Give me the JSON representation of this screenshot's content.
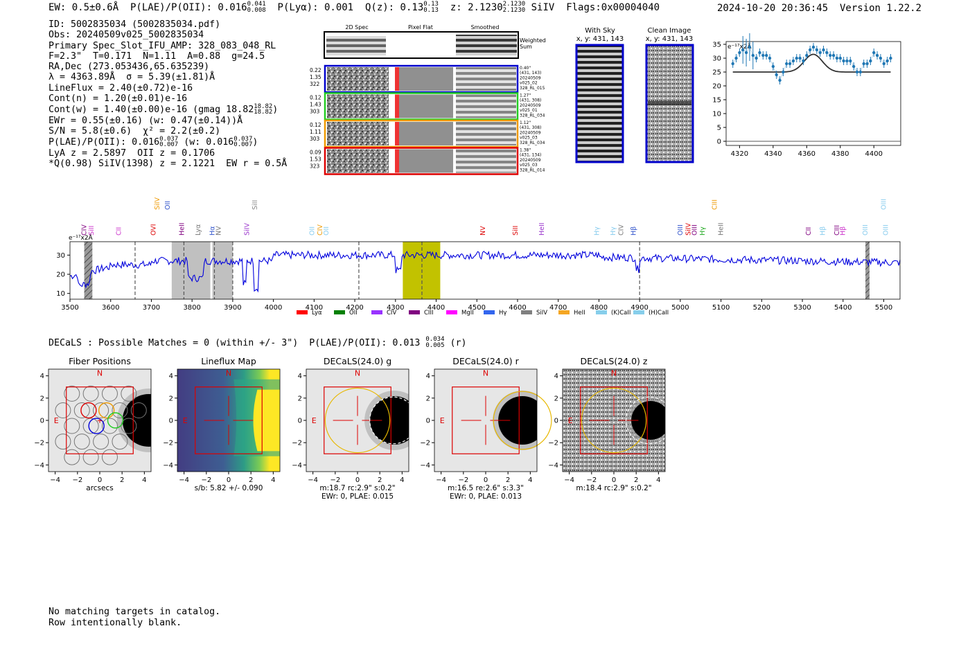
{
  "header": {
    "left": "EW: 0.5±0.6Å  P(LAE)/P(OII): 0.016",
    "plae_sup": "0.041",
    "plae_sub": "0.008",
    "plya": "P(Lyα): 0.001",
    "qz": "Q(z): 0.13",
    "qz_sup": "0.13",
    "qz_sub": "0.13",
    "z": "z: 2.1230",
    "z_sup": "2.1230",
    "z_sub": "2.1230",
    "z_tail": "SiIV  Flags:0x00004040",
    "datetime": "2024-10-20 20:36:45  Version 1.22.2"
  },
  "info_lines": [
    "ID: 5002835034 (5002835034.pdf)",
    "Obs: 20240509v025_5002835034",
    "Primary Spec_Slot_IFU_AMP: 328_083_048_RL",
    "F=2.3\"  T=0.171  N=1.11  A=0.88  g=24.5",
    "RA,Dec (273.053436,65.635239)",
    "λ = 4363.89Å  σ = 5.39(±1.81)Å",
    "LineFlux = 2.40(±0.72)e-16",
    "Cont(n) = 1.20(±0.01)e-16"
  ],
  "info_contw": "Cont(w) = 1.40(±0.00)e-16 (gmag 18.82",
  "info_contw_sup": "18.82",
  "info_contw_sub": "18.82",
  "info_ewr": "EWr = 0.55(±0.16) (w: 0.47(±0.14))Å",
  "info_sn": "S/N = 5.8(±0.6)  χ² = 2.2(±0.2)",
  "info_plae": "P(LAE)/P(OII): 0.016",
  "info_plae_sup": "0.037",
  "info_plae_sub": "0.007",
  "info_plae_w": "(w: 0.016",
  "info_plae_w_sup": "0.037",
  "info_plae_w_sub": "0.007",
  "info_lya": "LyA z = 2.5897  OII z = 0.1706",
  "info_q": "*Q(0.98) SiIV(1398) z = 2.1221  EW r = 0.5Å",
  "cutouts": {
    "col_headers": [
      "2D Spec",
      "Pixel Flat",
      "Smoothed"
    ],
    "weighted_sum": [
      "Weighted",
      "Sum"
    ],
    "rows": [
      {
        "left": [
          "0.22",
          "1.35",
          "322"
        ],
        "right": [
          "0.40\"",
          "(431, 143)",
          "20240509",
          "v025_02",
          "328_RL_015"
        ],
        "color": "#0000cc"
      },
      {
        "left": [
          "0.12",
          "1.43",
          "303"
        ],
        "right": [
          "1.27\"",
          "(431, 308)",
          "20240509",
          "v025_01",
          "328_RL_034"
        ],
        "color": "#22cc22"
      },
      {
        "left": [
          "0.12",
          "1.11",
          "303"
        ],
        "right": [
          "1.12\"",
          "(431, 308)",
          "20240509",
          "v025_03",
          "328_RL_034"
        ],
        "color": "#ee9900"
      },
      {
        "left": [
          "0.09",
          "1.53",
          "323"
        ],
        "right": [
          "1.38\"",
          "(431, 134)",
          "20240509",
          "v025_03",
          "328_RL_014"
        ],
        "color": "#dd0000"
      }
    ]
  },
  "withsky": {
    "title": "With Sky",
    "coords": "x, y: 431, 143"
  },
  "clean": {
    "title": "Clean Image",
    "coords": "x, y: 431, 143"
  },
  "zoom_chart": {
    "type": "line",
    "unit_label": "e⁻¹⁷x2Å",
    "xticks": [
      4320,
      4340,
      4360,
      4380,
      4400
    ],
    "yticks": [
      0,
      5,
      10,
      15,
      20,
      25,
      30,
      35
    ],
    "xlim": [
      4312,
      4416
    ],
    "ylim": [
      -1.5,
      36
    ],
    "data_x": [
      4316,
      4318,
      4320,
      4322,
      4324,
      4326,
      4328,
      4330,
      4332,
      4334,
      4336,
      4338,
      4340,
      4342,
      4344,
      4346,
      4348,
      4350,
      4352,
      4354,
      4356,
      4358,
      4360,
      4362,
      4364,
      4366,
      4368,
      4370,
      4372,
      4374,
      4376,
      4378,
      4380,
      4382,
      4384,
      4386,
      4388,
      4390,
      4392,
      4394,
      4396,
      4398,
      4400,
      4402,
      4404,
      4406,
      4408,
      4410
    ],
    "data_y": [
      28,
      30,
      32,
      33,
      32,
      34,
      31,
      30,
      32,
      31,
      31,
      30,
      27,
      24,
      22,
      25,
      28,
      28,
      29,
      30,
      30,
      29,
      31,
      33,
      34,
      33,
      32,
      33,
      32,
      31,
      31,
      30,
      30,
      29,
      29,
      29,
      27,
      25,
      25,
      28,
      28,
      29,
      32,
      31,
      30,
      28,
      29,
      30
    ],
    "model_center": 4363.9,
    "model_base": 25,
    "model_peak": 31.4,
    "model_sigma": 5.4
  },
  "spectrum": {
    "type": "line",
    "unit_label": "e⁻¹⁷x2Å",
    "xticks": [
      3500,
      3600,
      3700,
      3800,
      3900,
      4000,
      4100,
      4200,
      4300,
      4400,
      4500,
      4600,
      4700,
      4800,
      4900,
      5000,
      5100,
      5200,
      5300,
      5400,
      5500
    ],
    "yticks": [
      10,
      20,
      30
    ],
    "xlim": [
      3500,
      5540
    ],
    "ylim": [
      7,
      37
    ],
    "line_labels": [
      {
        "x": 3540,
        "text": "CIV",
        "color": "#800080"
      },
      {
        "x": 3558,
        "text": "SiII",
        "color": "#cc33cc"
      },
      {
        "x": 3625,
        "text": "CII",
        "color": "#cc33cc"
      },
      {
        "x": 3710,
        "text": "OVI",
        "color": "#dd0000"
      },
      {
        "x": 3720,
        "text": "SiIV",
        "color": "#ee9900"
      },
      {
        "x": 3745,
        "text": "OII",
        "color": "#3355cc"
      },
      {
        "x": 3780,
        "text": "HeII",
        "color": "#800080"
      },
      {
        "x": 3820,
        "text": "Lyα",
        "color": "#777777"
      },
      {
        "x": 3855,
        "text": "Hα",
        "color": "#3355cc"
      },
      {
        "x": 3870,
        "text": "NV",
        "color": "#777777"
      },
      {
        "x": 3940,
        "text": "SiIV",
        "color": "#9933cc"
      },
      {
        "x": 3960,
        "text": "SiII",
        "color": "#888888"
      },
      {
        "x": 4100,
        "text": "OII",
        "color": "#88ccee"
      },
      {
        "x": 4120,
        "text": "CIV",
        "color": "#ee9900"
      },
      {
        "x": 4135,
        "text": "OII",
        "color": "#88ccee"
      },
      {
        "x": 4520,
        "text": "NV",
        "color": "#dd0000"
      },
      {
        "x": 4600,
        "text": "SiII",
        "color": "#dd0000"
      },
      {
        "x": 4665,
        "text": "HeII",
        "color": "#9933cc"
      },
      {
        "x": 4800,
        "text": "Hγ",
        "color": "#88ccee"
      },
      {
        "x": 4840,
        "text": "Hγ",
        "color": "#88ccee"
      },
      {
        "x": 4860,
        "text": "CIV",
        "color": "#777777"
      },
      {
        "x": 4890,
        "text": "Hβ",
        "color": "#3355cc"
      },
      {
        "x": 5005,
        "text": "OIII",
        "color": "#3355cc"
      },
      {
        "x": 5025,
        "text": "SiIV",
        "color": "#dd0000"
      },
      {
        "x": 5040,
        "text": "OIII",
        "color": "#800080"
      },
      {
        "x": 5060,
        "text": "Hγ",
        "color": "#22aa22"
      },
      {
        "x": 5090,
        "text": "CIII",
        "color": "#ee9900"
      },
      {
        "x": 5105,
        "text": "HeII",
        "color": "#777777"
      },
      {
        "x": 5320,
        "text": "CII",
        "color": "#800080"
      },
      {
        "x": 5355,
        "text": "Hβ",
        "color": "#88ccee"
      },
      {
        "x": 5390,
        "text": "CIII",
        "color": "#800080"
      },
      {
        "x": 5405,
        "text": "Hβ",
        "color": "#cc33cc"
      },
      {
        "x": 5460,
        "text": "OIII",
        "color": "#88ccee"
      },
      {
        "x": 5505,
        "text": "OIII",
        "color": "#88ccee"
      },
      {
        "x": 5510,
        "text": "OIII",
        "color": "#88ccee"
      }
    ],
    "dashed_lines": [
      3660,
      3780,
      3855,
      3900,
      4210,
      4365,
      4900
    ],
    "gray_bands": [
      [
        3750,
        3845
      ],
      [
        3850,
        3900
      ]
    ],
    "hatched_bands": [
      [
        3535,
        3555
      ],
      [
        5455,
        5465
      ]
    ],
    "highlight_band": [
      4318,
      4410
    ],
    "legend": [
      {
        "name": "Lyα",
        "color": "#ff0000"
      },
      {
        "name": "OII",
        "color": "#008000"
      },
      {
        "name": "CIV",
        "color": "#9933ff"
      },
      {
        "name": "CIII",
        "color": "#800080"
      },
      {
        "name": "MgII",
        "color": "#ff00ff"
      },
      {
        "name": "Hγ",
        "color": "#3366ee"
      },
      {
        "name": "SiIV",
        "color": "#808080"
      },
      {
        "name": "HeII",
        "color": "#f5a623"
      },
      {
        "name": "(K)CaII",
        "color": "#87ceeb"
      },
      {
        "name": "(H)CaII",
        "color": "#87ceeb"
      }
    ]
  },
  "decals": {
    "line": "DECaLS : Possible Matches = 0 (within +/- 3\")  P(LAE)/P(OII): 0.013",
    "sup": "0.034",
    "sub": "0.005",
    "tail": "(r)"
  },
  "panels": [
    {
      "title": "Fiber Positions",
      "xlabel": "arcsecs",
      "cap2": ""
    },
    {
      "title": "Lineflux Map",
      "xlabel": "s/b: 5.82 +/- 0.090",
      "cap2": ""
    },
    {
      "title": "DECaLS(24.0) g",
      "xlabel": "m:18.7 rc:2.9\"  s:0.2\"",
      "cap2": "EWr: 0, PLAE: 0.015"
    },
    {
      "title": "DECaLS(24.0) r",
      "xlabel": "m:16.5  re:2.6\"  s:3.3\"",
      "cap2": "EWr: 0, PLAE: 0.013"
    },
    {
      "title": "DECaLS(24.0) z",
      "xlabel": "m:18.4 rc:2.9\"  s:0.2\"",
      "cap2": ""
    }
  ],
  "panel_ticks": [
    -4,
    -2,
    0,
    2,
    4
  ],
  "compass": {
    "n": "N",
    "e": "E"
  },
  "footer": [
    "No matching targets in catalog.",
    "Row intentionally blank."
  ]
}
